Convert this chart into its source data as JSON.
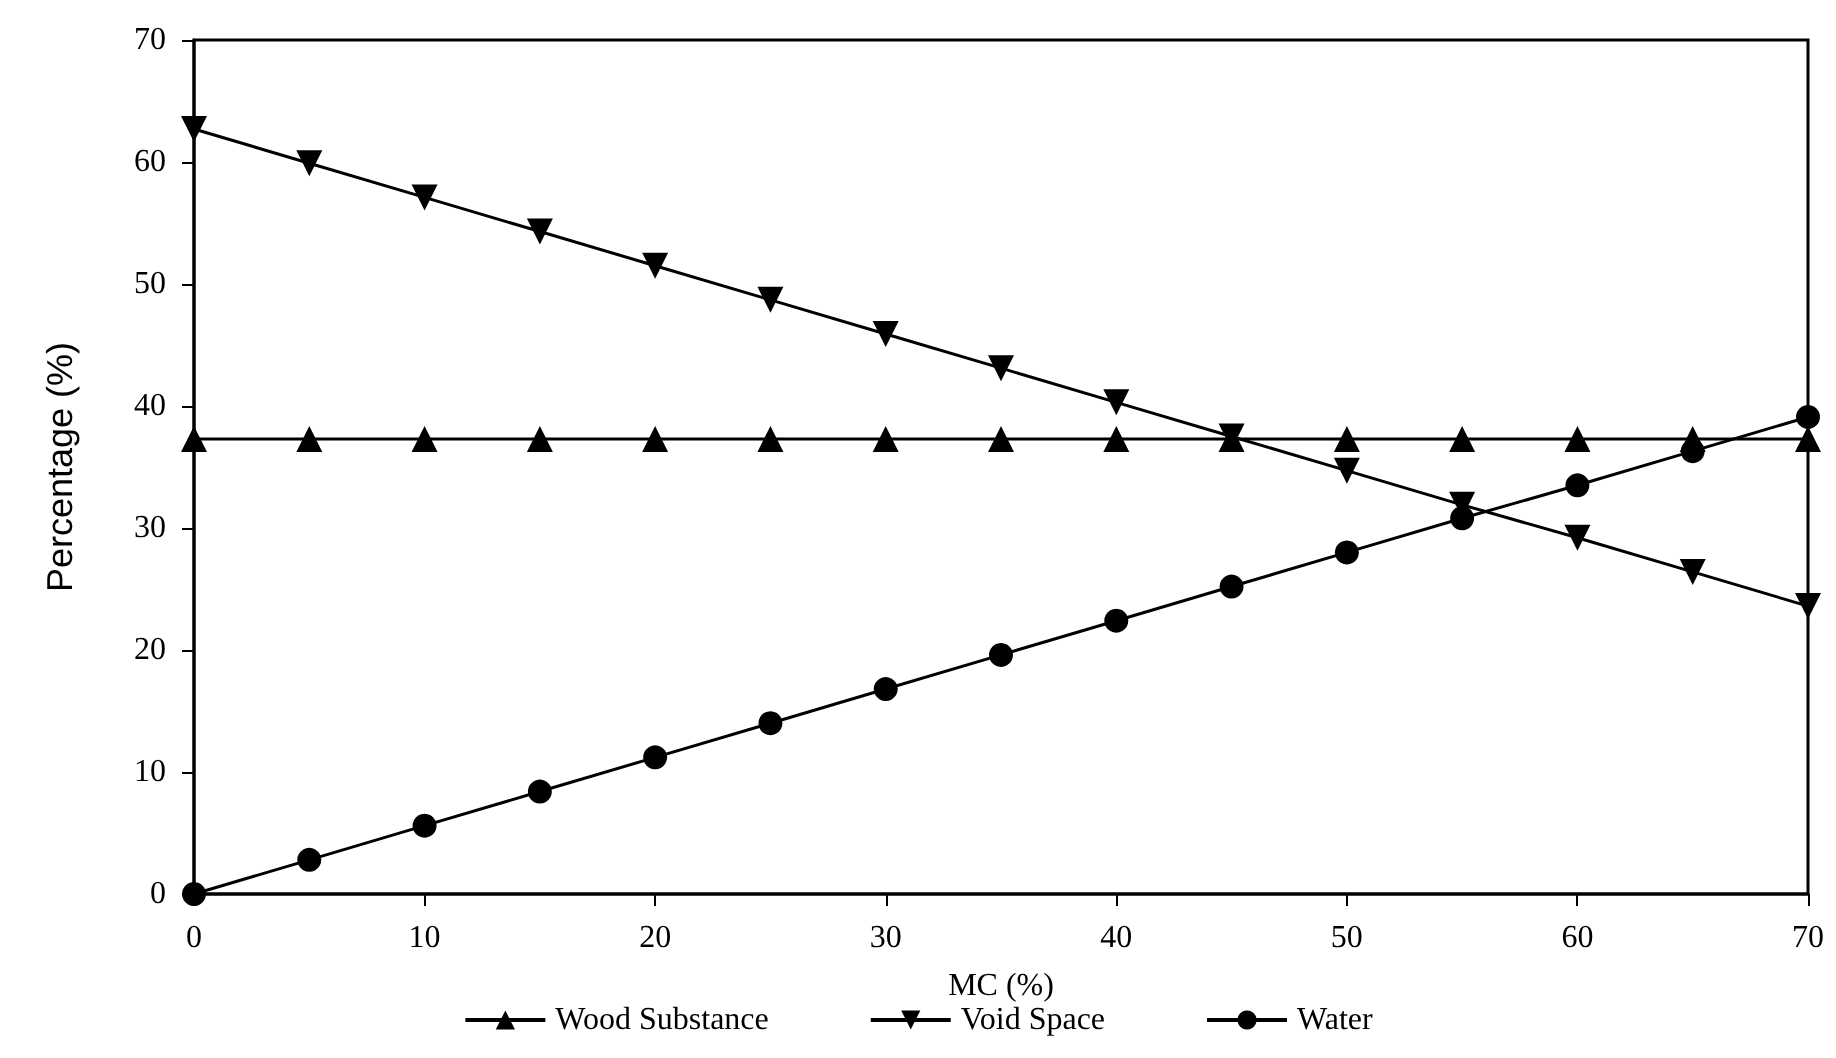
{
  "chart_data": {
    "type": "line",
    "xlabel": "MC (%)",
    "ylabel": "Percentage (%)",
    "x": [
      0,
      5,
      10,
      15,
      20,
      25,
      30,
      35,
      40,
      45,
      50,
      55,
      60,
      65,
      70
    ],
    "xlim": [
      0,
      70
    ],
    "xticks": [
      0,
      10,
      20,
      30,
      40,
      50,
      60,
      70
    ],
    "ylim": [
      0,
      70
    ],
    "yticks": [
      0,
      10,
      20,
      30,
      40,
      50,
      60,
      70
    ],
    "grid": false,
    "legend": "bottom",
    "line_style": "solid",
    "series": [
      {
        "name": "Wood Substance",
        "color": "#000000",
        "marker": "triangle",
        "values": [
          37.3,
          37.3,
          37.3,
          37.3,
          37.3,
          37.3,
          37.3,
          37.3,
          37.3,
          37.3,
          37.3,
          37.3,
          37.3,
          37.3,
          37.3
        ]
      },
      {
        "name": "Void Space",
        "color": "#000000",
        "marker": "triangle-down",
        "values": [
          62.7,
          59.9,
          57.1,
          54.3,
          51.5,
          48.7,
          45.9,
          43.1,
          40.3,
          37.5,
          34.7,
          31.9,
          29.2,
          26.4,
          23.6
        ]
      },
      {
        "name": "Water",
        "color": "#000000",
        "marker": "circle",
        "values": [
          0,
          2.8,
          5.6,
          8.4,
          11.2,
          14.0,
          16.8,
          19.6,
          22.4,
          25.2,
          28.0,
          30.8,
          33.5,
          36.3,
          39.1
        ]
      }
    ]
  }
}
